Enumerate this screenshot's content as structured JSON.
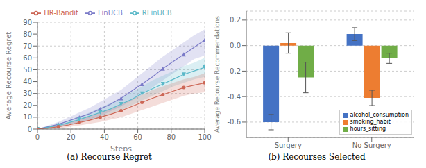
{
  "chart_data": [
    {
      "type": "line",
      "caption": "(a)  Recourse Regret",
      "xlabel": "Steps",
      "ylabel": "Average Recourse Regret",
      "x": [
        0,
        6.25,
        12.5,
        18.75,
        25,
        31.25,
        37.5,
        43.75,
        50,
        56.25,
        62.5,
        68.75,
        75,
        81.25,
        87.5,
        93.75,
        100
      ],
      "xlim": [
        0,
        100
      ],
      "xticks": [
        0,
        20,
        40,
        60,
        80,
        100
      ],
      "ylim": [
        0,
        90
      ],
      "yticks": [
        0,
        10,
        20,
        30,
        40,
        50,
        60,
        70,
        80,
        90
      ],
      "grid": true,
      "legend": "top",
      "series": [
        {
          "name": "LinUCB",
          "color": "#7b7bc8",
          "marker": "triangle-up",
          "values": [
            0,
            2,
            4,
            7,
            10,
            13,
            17,
            21,
            26,
            32,
            38,
            44,
            51,
            57,
            63,
            69,
            75
          ],
          "lower": [
            0,
            1,
            2,
            4,
            6,
            8,
            11,
            15,
            19,
            24,
            29,
            35,
            41,
            47,
            53,
            59,
            62
          ],
          "upper": [
            0,
            3,
            6,
            10,
            14,
            18,
            23,
            28,
            33,
            40,
            47,
            54,
            61,
            67,
            73,
            79,
            84
          ]
        },
        {
          "name": "RLinUCB",
          "color": "#5ab8c8",
          "marker": "triangle-down",
          "values": [
            0,
            1.5,
            3,
            5.5,
            8,
            11,
            14,
            17,
            21,
            25,
            30,
            34,
            38,
            42,
            46,
            49,
            52
          ],
          "lower": [
            0,
            0.8,
            1.8,
            3.5,
            5.5,
            7.5,
            10,
            13,
            16,
            20,
            24,
            28,
            32,
            36,
            39,
            42,
            44
          ],
          "upper": [
            0,
            2.2,
            4.2,
            7.5,
            10.5,
            14,
            18,
            22,
            26,
            31,
            36,
            41,
            45,
            49,
            53,
            56,
            60
          ]
        },
        {
          "name": "HR-Bandit",
          "color": "#cc6655",
          "marker": "circle",
          "values": [
            0,
            0.8,
            2,
            3.5,
            5.5,
            7.5,
            10,
            12.5,
            15.5,
            19,
            22.5,
            26,
            29,
            32,
            35,
            37,
            39
          ],
          "lower": [
            0,
            0.1,
            0.8,
            1.8,
            3,
            4.5,
            6,
            8,
            10,
            13,
            16,
            19,
            22,
            25,
            28,
            30,
            31
          ],
          "upper": [
            0,
            1.5,
            3.2,
            5.2,
            8,
            10.5,
            14,
            17,
            21,
            25,
            29,
            33,
            36,
            39,
            42,
            44,
            47
          ]
        }
      ]
    },
    {
      "type": "bar",
      "caption": "(b)  Recourses Selected",
      "ylabel": "Average Recourse Recommendations",
      "categories": [
        "Surgery",
        "No Surgery"
      ],
      "ylim": [
        -0.72,
        0.27
      ],
      "yticks": [
        -0.6,
        -0.4,
        -0.2,
        {
          "value": 0,
          "label": "0.0"
        },
        0.2
      ],
      "grid": "y",
      "legend": "lower right",
      "series": [
        {
          "name": "alcohol_consumption",
          "color": "#4472c4",
          "values": [
            -0.6,
            0.09
          ],
          "errors": [
            0.06,
            0.05
          ]
        },
        {
          "name": "smoking_habit",
          "color": "#ed7d31",
          "values": [
            0.02,
            -0.41
          ],
          "errors": [
            0.08,
            0.06
          ]
        },
        {
          "name": "hours_sitting",
          "color": "#70ad47",
          "values": [
            -0.25,
            -0.1
          ],
          "errors": [
            0.12,
            0.04
          ]
        }
      ]
    }
  ]
}
